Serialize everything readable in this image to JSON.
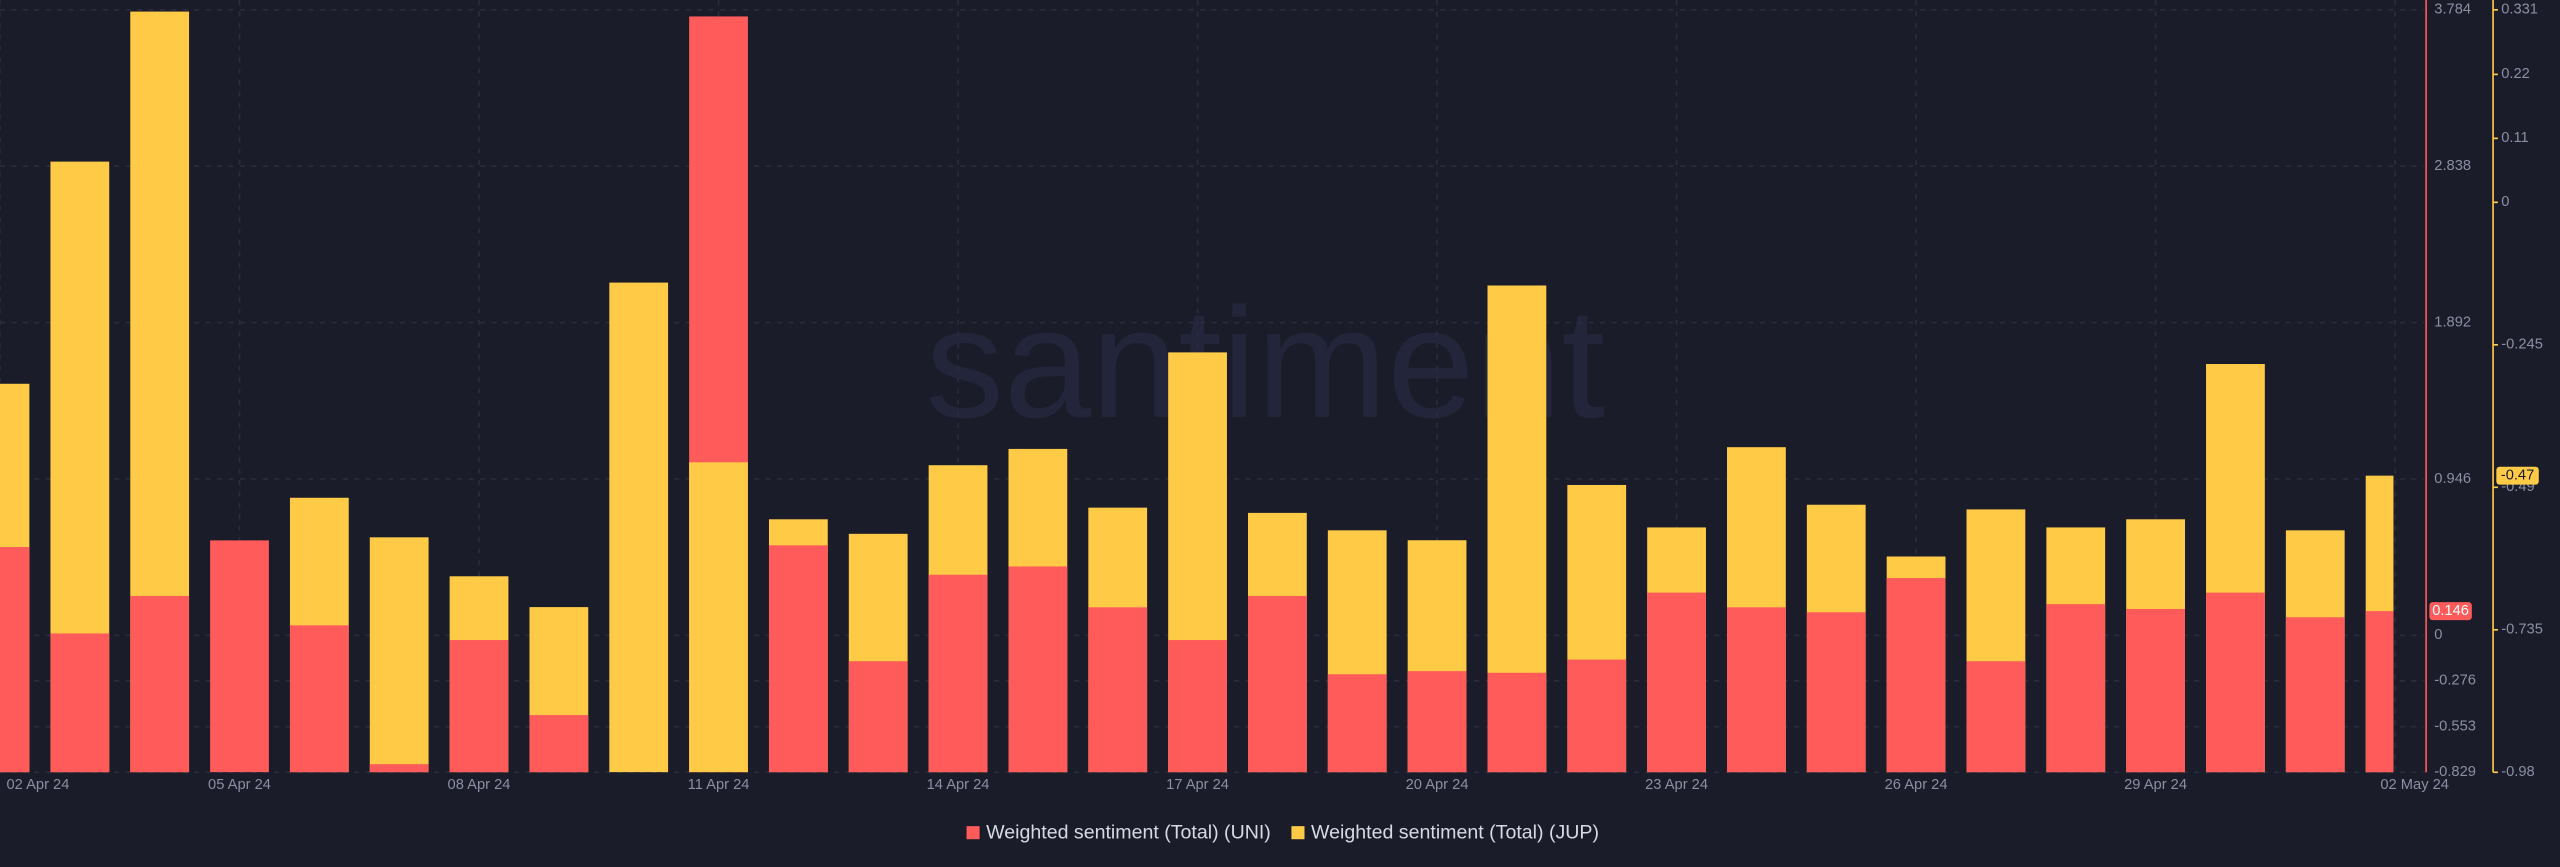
{
  "chart_data": {
    "type": "bar",
    "watermark": "santiment",
    "grid": true,
    "categories": [
      "02 Apr 24",
      null,
      null,
      "05 Apr 24",
      null,
      null,
      "08 Apr 24",
      null,
      null,
      "11 Apr 24",
      null,
      null,
      "14 Apr 24",
      null,
      null,
      "17 Apr 24",
      null,
      null,
      "20 Apr 24",
      null,
      null,
      "23 Apr 24",
      null,
      null,
      "26 Apr 24",
      null,
      null,
      "29 Apr 24",
      null,
      null,
      "02 May 24"
    ],
    "series": [
      {
        "name": "Weighted sentiment (Total) (UNI)",
        "color": "#ff5b5a",
        "values": [
          0.534,
          0.011,
          0.238,
          0.574,
          0.06,
          -0.78,
          -0.029,
          -0.483,
          -0.829,
          3.744,
          0.544,
          -0.157,
          0.366,
          0.416,
          0.169,
          -0.029,
          0.238,
          -0.236,
          -0.217,
          -0.227,
          -0.147,
          0.258,
          0.169,
          0.139,
          0.346,
          -0.157,
          0.188,
          0.159,
          0.258,
          0.109,
          0.146
        ]
      },
      {
        "name": "Weighted sentiment (Total) (JUP)",
        "color": "#ffcb47",
        "axis": "y2",
        "values": [
          -0.312,
          0.07,
          0.328,
          -0.98,
          -0.508,
          -0.576,
          -0.643,
          -0.696,
          -0.138,
          -0.447,
          -0.545,
          -0.57,
          -0.452,
          -0.424,
          -0.525,
          -0.258,
          -0.534,
          -0.564,
          -0.581,
          -0.143,
          -0.486,
          -0.559,
          -0.421,
          -0.52,
          -0.609,
          -0.528,
          -0.559,
          -0.545,
          -0.278,
          -0.564,
          -0.47
        ]
      }
    ],
    "ylim": [
      -0.829,
      3.784
    ],
    "yticks": [
      3.784,
      2.838,
      1.892,
      0.946,
      0,
      -0.276,
      -0.553,
      -0.829
    ],
    "y2lim": [
      -0.98,
      0.331
    ],
    "y2ticks": [
      0.331,
      0.22,
      0.11,
      0,
      -0.245,
      -0.49,
      -0.735,
      -0.98
    ]
  }
}
